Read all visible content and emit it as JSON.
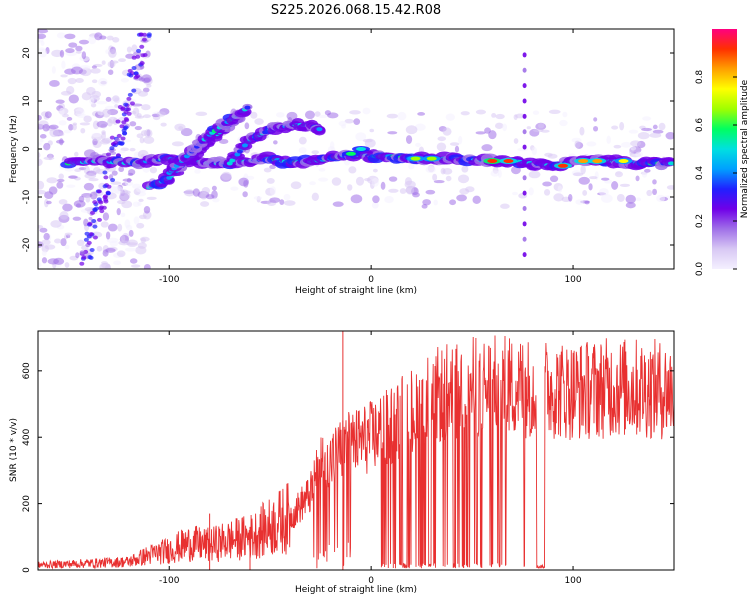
{
  "title": "S225.2026.068.15.42.R08",
  "chart_data": [
    {
      "type": "heatmap",
      "name": "spectrogram",
      "xlabel": "Height of straight line (km)",
      "ylabel": "Frequency (Hz)",
      "xlim": [
        -165,
        150
      ],
      "ylim": [
        -25,
        25
      ],
      "xticks": [
        -100,
        0,
        100
      ],
      "yticks": [
        -20,
        -10,
        0,
        10,
        20
      ],
      "colorbar": {
        "label": "Normalized spectral amplitude",
        "range": [
          0,
          1
        ],
        "ticks": [
          0.0,
          0.2,
          0.4,
          0.6,
          0.8
        ],
        "tick_labels": [
          "0.0",
          "0.2",
          "0.4",
          "0.6",
          "0.8"
        ],
        "colors": [
          "#f4f0ff",
          "#d8c8f4",
          "#a070e8",
          "#7000e8",
          "#2020ff",
          "#00a0ff",
          "#00e0e0",
          "#00ff60",
          "#a0ff00",
          "#ffff00",
          "#ffa000",
          "#ff3000",
          "#ff0080"
        ]
      },
      "main_ridge": [
        [
          -150,
          -3
        ],
        [
          -135,
          -2.5
        ],
        [
          -120,
          -3
        ],
        [
          -110,
          -2.5
        ],
        [
          -100,
          -2
        ],
        [
          -90,
          -2.5
        ],
        [
          -80,
          -3
        ],
        [
          -70,
          -3
        ],
        [
          -60,
          -2.5
        ],
        [
          -50,
          -2
        ],
        [
          -40,
          -2.8
        ],
        [
          -30,
          -2.6
        ],
        [
          -20,
          -2
        ],
        [
          -10,
          -1
        ],
        [
          0,
          -1.5
        ],
        [
          10,
          -1.5
        ],
        [
          20,
          -2
        ],
        [
          30,
          -2
        ],
        [
          40,
          -2
        ],
        [
          50,
          -2.2
        ],
        [
          60,
          -2.5
        ],
        [
          70,
          -2.5
        ],
        [
          80,
          -3
        ],
        [
          90,
          -3.5
        ],
        [
          100,
          -2.5
        ],
        [
          110,
          -2.5
        ],
        [
          120,
          -2.5
        ],
        [
          130,
          -3
        ],
        [
          140,
          -3
        ],
        [
          150,
          -3
        ]
      ],
      "rising_branches": [
        [
          [
            -110,
            -8
          ],
          [
            -100,
            -6
          ],
          [
            -90,
            -2
          ],
          [
            -80,
            2
          ],
          [
            -70,
            5
          ],
          [
            -65,
            7
          ]
        ],
        [
          [
            -100,
            -5
          ],
          [
            -90,
            -1
          ],
          [
            -80,
            3
          ],
          [
            -70,
            6
          ],
          [
            -60,
            9
          ]
        ],
        [
          [
            -70,
            -3
          ],
          [
            -60,
            2
          ],
          [
            -50,
            4
          ],
          [
            -40,
            5
          ],
          [
            -30,
            5
          ],
          [
            -25,
            4
          ]
        ]
      ],
      "peaks": [
        {
          "x": 60,
          "y": -2.5,
          "v": 0.95
        },
        {
          "x": 68,
          "y": -2.5,
          "v": 0.9
        },
        {
          "x": 22,
          "y": -2,
          "v": 0.7
        },
        {
          "x": 30,
          "y": -2,
          "v": 0.65
        },
        {
          "x": 95,
          "y": -3.5,
          "v": 0.9
        },
        {
          "x": 105,
          "y": -2.5,
          "v": 0.85
        },
        {
          "x": 112,
          "y": -2.5,
          "v": 0.8
        },
        {
          "x": 125,
          "y": -2.5,
          "v": 0.75
        },
        {
          "x": -10,
          "y": -1,
          "v": 0.6
        },
        {
          "x": -5,
          "y": 0,
          "v": 0.5
        }
      ]
    },
    {
      "type": "line",
      "name": "snr",
      "xlabel": "Height of straight line (km)",
      "ylabel": "SNR (10 * v/v)",
      "xlim": [
        -165,
        150
      ],
      "ylim": [
        0,
        720
      ],
      "xticks": [
        -100,
        0,
        100
      ],
      "yticks": [
        0,
        200,
        400,
        600
      ],
      "color": "#e83030",
      "trend": [
        [
          -165,
          15
        ],
        [
          -140,
          20
        ],
        [
          -120,
          25
        ],
        [
          -110,
          45
        ],
        [
          -100,
          60
        ],
        [
          -90,
          80
        ],
        [
          -80,
          75
        ],
        [
          -70,
          90
        ],
        [
          -60,
          100
        ],
        [
          -50,
          130
        ],
        [
          -40,
          160
        ],
        [
          -30,
          230
        ],
        [
          -25,
          330
        ],
        [
          -20,
          330
        ],
        [
          -15,
          360
        ],
        [
          -10,
          380
        ],
        [
          0,
          400
        ],
        [
          10,
          440
        ],
        [
          20,
          480
        ],
        [
          30,
          520
        ],
        [
          40,
          540
        ],
        [
          50,
          550
        ],
        [
          60,
          555
        ],
        [
          80,
          550
        ],
        [
          100,
          540
        ],
        [
          120,
          550
        ],
        [
          140,
          545
        ],
        [
          150,
          540
        ]
      ],
      "spikes": [
        {
          "x": -14,
          "y": 720
        },
        {
          "x": -80,
          "y": 170
        },
        {
          "x": -60,
          "y": 130
        }
      ],
      "dropout_bands": [
        [
          5,
          67
        ],
        [
          75,
          76
        ],
        [
          82,
          86
        ]
      ]
    }
  ]
}
